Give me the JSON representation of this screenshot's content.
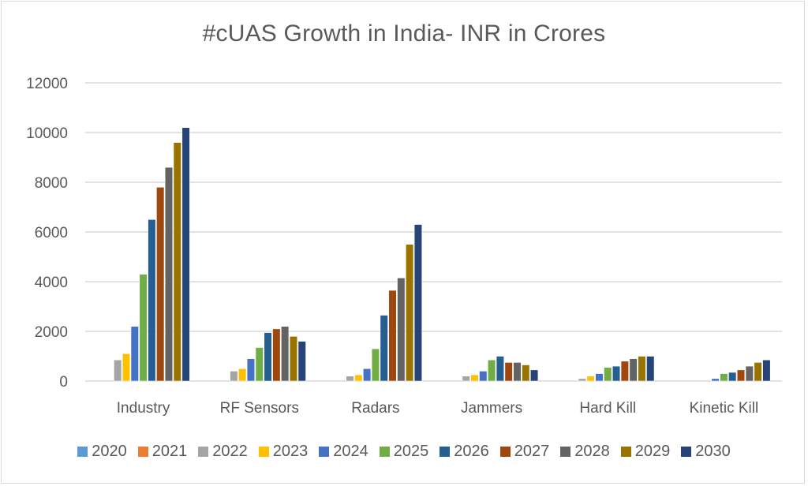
{
  "chart_data": {
    "type": "bar",
    "title": "#cUAS Growth in India- INR in Crores",
    "xlabel": "",
    "ylabel": "",
    "ylim": [
      0,
      12000
    ],
    "yticks": [
      0,
      2000,
      4000,
      6000,
      8000,
      10000,
      12000
    ],
    "ytick_labels": [
      "0",
      "2000",
      "4000",
      "6000",
      "8000",
      "10000",
      "12000"
    ],
    "grid": true,
    "legend_position": "bottom",
    "categories": [
      "Industry",
      "RF Sensors",
      "Radars",
      "Jammers",
      "Hard Kill",
      "Kinetic Kill"
    ],
    "series": [
      {
        "name": "2020",
        "color": "#5b9bd5",
        "values": [
          0,
          0,
          0,
          0,
          0,
          0
        ]
      },
      {
        "name": "2021",
        "color": "#ed7d31",
        "values": [
          0,
          0,
          0,
          0,
          0,
          0
        ]
      },
      {
        "name": "2022",
        "color": "#a5a5a5",
        "values": [
          850,
          400,
          200,
          200,
          100,
          0
        ]
      },
      {
        "name": "2023",
        "color": "#ffc000",
        "values": [
          1100,
          500,
          250,
          250,
          200,
          0
        ]
      },
      {
        "name": "2024",
        "color": "#4472c4",
        "values": [
          2200,
          900,
          500,
          400,
          300,
          100
        ]
      },
      {
        "name": "2025",
        "color": "#70ad47",
        "values": [
          4300,
          1350,
          1300,
          850,
          550,
          300
        ]
      },
      {
        "name": "2026",
        "color": "#255e91",
        "values": [
          6500,
          1950,
          2650,
          1000,
          600,
          350
        ]
      },
      {
        "name": "2027",
        "color": "#9e480e",
        "values": [
          7800,
          2100,
          3650,
          750,
          800,
          450
        ]
      },
      {
        "name": "2028",
        "color": "#636363",
        "values": [
          8600,
          2200,
          4150,
          750,
          900,
          600
        ]
      },
      {
        "name": "2029",
        "color": "#997300",
        "values": [
          9600,
          1800,
          5500,
          650,
          1000,
          750
        ]
      },
      {
        "name": "2030",
        "color": "#264478",
        "values": [
          10200,
          1600,
          6300,
          450,
          1000,
          850
        ]
      }
    ]
  }
}
